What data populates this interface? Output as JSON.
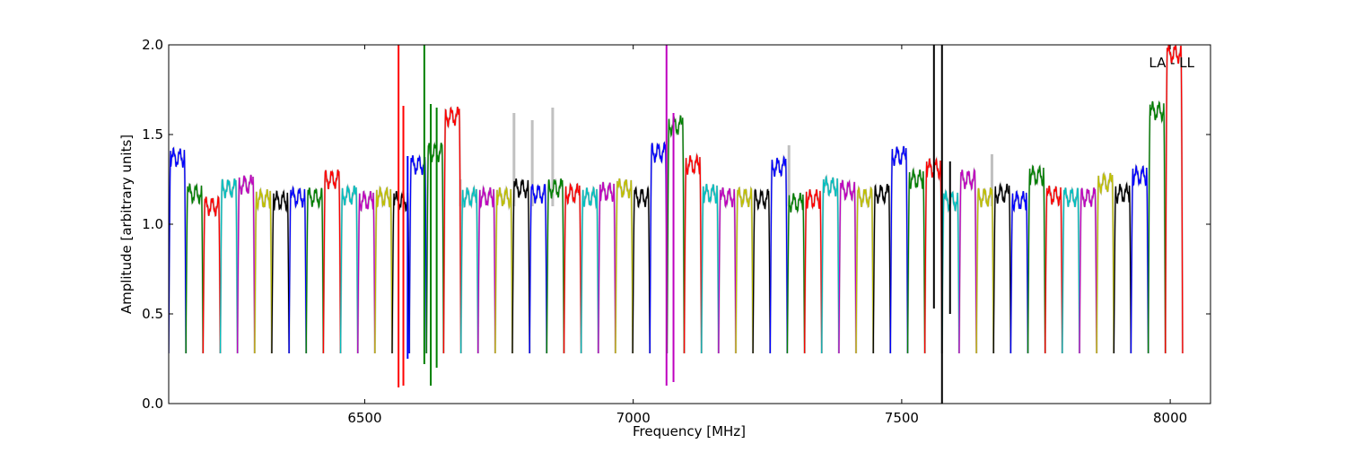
{
  "chart_data": {
    "type": "line",
    "annotation": "LA - LL",
    "xlabel": "Frequency [MHz]",
    "ylabel": "Amplitude [arbitrary units]",
    "xlim": [
      6135,
      8075
    ],
    "ylim": [
      0.0,
      2.0
    ],
    "x_ticks": [
      6500,
      7000,
      7500,
      8000
    ],
    "x_tick_labels": [
      "6500",
      "7000",
      "7500",
      "8000"
    ],
    "y_ticks": [
      0.0,
      0.5,
      1.0,
      1.5,
      2.0
    ],
    "y_tick_labels": [
      "0.0",
      "0.5",
      "1.0",
      "1.5",
      "2.0"
    ],
    "channel_width_mhz": 32,
    "first_channel_start_mhz": 6135,
    "channel_edge_amplitude": 0.28,
    "color_cycle": [
      "#0000ff",
      "#008000",
      "#ff0000",
      "#00bfbf",
      "#bf00bf",
      "#bfbf00",
      "#000000"
    ],
    "background_color": "#c0c0c0",
    "channel_levels": [
      1.42,
      1.22,
      1.15,
      1.25,
      1.27,
      1.19,
      1.18,
      1.2,
      1.2,
      1.3,
      1.21,
      1.18,
      1.2,
      1.18,
      1.38,
      1.45,
      1.65,
      1.2,
      1.2,
      1.2,
      1.25,
      1.22,
      1.25,
      1.22,
      1.2,
      1.23,
      1.25,
      1.2,
      1.45,
      1.6,
      1.38,
      1.22,
      1.2,
      1.2,
      1.19,
      1.37,
      1.17,
      1.19,
      1.26,
      1.24,
      1.2,
      1.22,
      1.43,
      1.3,
      1.36,
      1.18,
      1.3,
      1.2,
      1.22,
      1.18,
      1.32,
      1.21,
      1.2,
      1.2,
      1.28,
      1.22,
      1.32,
      1.68,
      2.0
    ],
    "rfi_spikes": [
      {
        "x": 6563,
        "min": 0.09,
        "max": 2.0,
        "color": "#ff0000"
      },
      {
        "x": 6572,
        "min": 0.1,
        "max": 1.66,
        "color": "#ff0000"
      },
      {
        "x": 6580,
        "min": 0.25,
        "max": 1.38,
        "color": "#0000ff"
      },
      {
        "x": 6611,
        "min": 0.22,
        "max": 2.0,
        "color": "#008000"
      },
      {
        "x": 6623,
        "min": 0.1,
        "max": 1.67,
        "color": "#008000"
      },
      {
        "x": 6634,
        "min": 0.2,
        "max": 1.65,
        "color": "#008000"
      },
      {
        "x": 7062,
        "min": 0.1,
        "max": 2.0,
        "color": "#bf00bf"
      },
      {
        "x": 7075,
        "min": 0.12,
        "max": 1.62,
        "color": "#bf00bf"
      },
      {
        "x": 7560,
        "min": 0.53,
        "max": 2.0,
        "color": "#000000"
      },
      {
        "x": 7575,
        "min": 0.0,
        "max": 2.0,
        "color": "#000000"
      },
      {
        "x": 7590,
        "min": 0.5,
        "max": 1.35,
        "color": "#000000"
      }
    ],
    "background_spikes": [
      {
        "x": 6778,
        "max": 1.62
      },
      {
        "x": 6812,
        "max": 1.58
      },
      {
        "x": 6850,
        "max": 1.65
      },
      {
        "x": 6678,
        "max": 1.25
      },
      {
        "x": 7290,
        "max": 1.44
      },
      {
        "x": 7668,
        "max": 1.39
      }
    ]
  }
}
